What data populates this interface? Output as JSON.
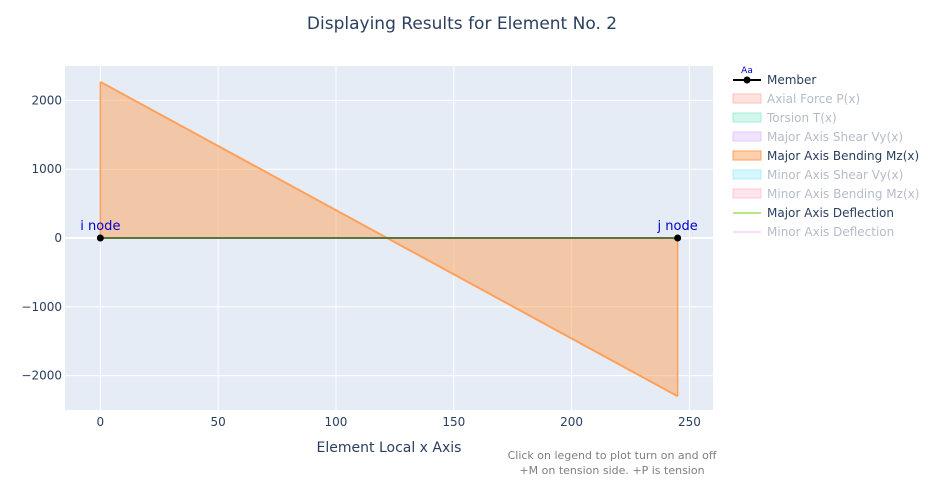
{
  "chart_data": {
    "type": "line",
    "title": "Displaying Results for Element No. 2",
    "xlabel": "Element Local x Axis",
    "ylabel": "",
    "xlim": [
      -15,
      260
    ],
    "ylim": [
      -2500,
      2500
    ],
    "x_ticks": [
      0,
      50,
      100,
      150,
      200,
      250
    ],
    "y_ticks": [
      -2000,
      -1000,
      0,
      1000,
      2000
    ],
    "y_tick_labels": [
      "−2000",
      "−1000",
      "0",
      "1000",
      "2000"
    ],
    "grid": true,
    "legend_position": "right",
    "legend_badge": "Aa",
    "series": [
      {
        "name": "Member",
        "color": "#000000",
        "active": true,
        "kind": "member",
        "x": [
          0,
          245
        ],
        "y": [
          0,
          0
        ]
      },
      {
        "name": "Axial Force P(x)",
        "color": "#ef553b",
        "active": false,
        "kind": "fill"
      },
      {
        "name": "Torsion T(x)",
        "color": "#00cc96",
        "active": false,
        "kind": "fill"
      },
      {
        "name": "Major Axis Shear Vy(x)",
        "color": "#ab63fa",
        "active": false,
        "kind": "fill"
      },
      {
        "name": "Major Axis Bending Mz(x)",
        "color": "#ffa15a",
        "active": true,
        "kind": "fill",
        "x": [
          0,
          245
        ],
        "y": [
          2270,
          -2300
        ]
      },
      {
        "name": "Minor Axis Shear Vy(x)",
        "color": "#19d3f3",
        "active": false,
        "kind": "fill"
      },
      {
        "name": "Minor Axis Bending Mz(x)",
        "color": "#ff6692",
        "active": false,
        "kind": "fill"
      },
      {
        "name": "Major Axis Deflection",
        "color": "#b6e880",
        "active": true,
        "kind": "line",
        "x": [
          0,
          245
        ],
        "y": [
          0,
          0
        ]
      },
      {
        "name": "Minor Axis Deflection",
        "color": "#ff97ff",
        "active": false,
        "kind": "line"
      }
    ],
    "annotations": [
      {
        "text": "i node",
        "x": 0,
        "y": 0
      },
      {
        "text": "j node",
        "x": 245,
        "y": 0
      }
    ],
    "notes": [
      "Click on legend to plot turn on and off",
      "+M on tension side. +P is tension"
    ]
  }
}
